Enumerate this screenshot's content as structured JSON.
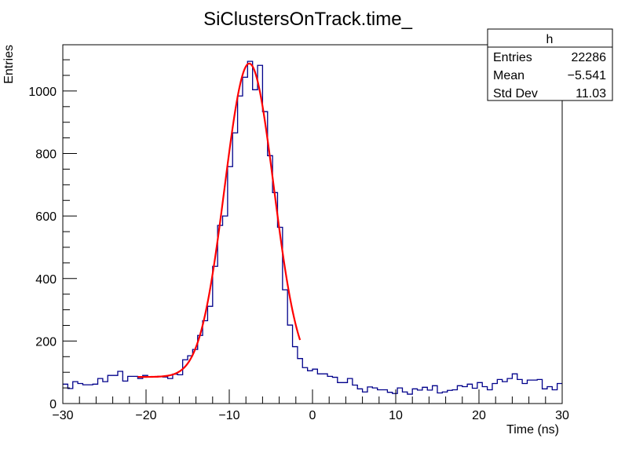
{
  "chart_data": {
    "type": "histogram",
    "title": "SiClustersOnTrack.time_",
    "xlabel": "Time (ns)",
    "ylabel": "Entries",
    "xlim": [
      -30,
      30
    ],
    "ylim": [
      0,
      1148
    ],
    "bin_width": 0.6,
    "x_ticks": [
      -30,
      -20,
      -10,
      0,
      10,
      20,
      30
    ],
    "x_minor_step": 2,
    "y_ticks": [
      0,
      200,
      400,
      600,
      800,
      1000
    ],
    "y_minor_step": 50,
    "grid": false,
    "hist_color": "#00008b",
    "fit_color": "#ff0000",
    "counts": [
      62,
      48,
      70,
      64,
      60,
      60,
      62,
      80,
      70,
      90,
      90,
      103,
      72,
      87,
      87,
      80,
      90,
      85,
      85,
      87,
      85,
      80,
      94,
      92,
      140,
      153,
      173,
      218,
      265,
      311,
      439,
      570,
      600,
      758,
      866,
      984,
      1044,
      1095,
      1004,
      1082,
      934,
      793,
      675,
      564,
      364,
      251,
      182,
      144,
      115,
      105,
      110,
      95,
      95,
      87,
      84,
      67,
      67,
      80,
      59,
      47,
      37,
      53,
      50,
      44,
      44,
      36,
      32,
      50,
      37,
      30,
      47,
      43,
      52,
      43,
      57,
      34,
      37,
      42,
      44,
      57,
      54,
      62,
      49,
      67,
      54,
      44,
      64,
      77,
      70,
      80,
      95,
      77,
      64,
      75,
      75,
      77,
      47,
      54,
      44,
      64
    ],
    "fit": {
      "constant": 85,
      "amplitude": 1003,
      "mean": -7.6,
      "sigma": 2.95,
      "range": [
        -21,
        -1.5
      ]
    },
    "stats_box": {
      "title": "h",
      "rows": [
        {
          "label": "Entries",
          "value": "22286"
        },
        {
          "label": "Mean",
          "value": "−5.541"
        },
        {
          "label": "Std Dev",
          "value": "11.03"
        }
      ]
    }
  }
}
